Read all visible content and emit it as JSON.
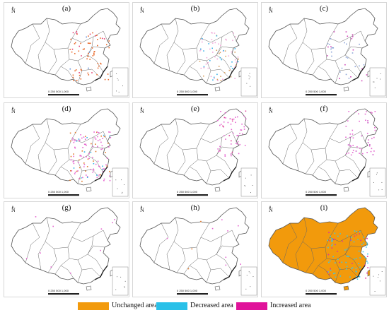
{
  "figure": {
    "panels": [
      {
        "label": "(a)",
        "fill": "none",
        "dots": [
          [
            "#e8692a",
            55
          ],
          [
            "#e53b6f",
            12
          ],
          [
            "#6a8fd6",
            4
          ]
        ],
        "region": "east"
      },
      {
        "label": "(b)",
        "fill": "none",
        "dots": [
          [
            "#d9a062",
            18
          ],
          [
            "#f0a8d8",
            40
          ],
          [
            "#3cb4e8",
            20
          ]
        ],
        "region": "east"
      },
      {
        "label": "(c)",
        "fill": "none",
        "dots": [
          [
            "#d048b8",
            16
          ],
          [
            "#8fa6d8",
            22
          ]
        ],
        "region": "east"
      },
      {
        "label": "(d)",
        "fill": "none",
        "dots": [
          [
            "#e07a2c",
            30
          ],
          [
            "#e566d0",
            80
          ],
          [
            "#3cb4e8",
            14
          ]
        ],
        "region": "east"
      },
      {
        "label": "(e)",
        "fill": "none",
        "dots": [
          [
            "#e566d0",
            45
          ],
          [
            "#e0409a",
            10
          ]
        ],
        "region": "northeast"
      },
      {
        "label": "(f)",
        "fill": "none",
        "dots": [
          [
            "#e566d0",
            40
          ],
          [
            "#c84fc0",
            10
          ]
        ],
        "region": "northeast"
      },
      {
        "label": "(g)",
        "fill": "none",
        "dots": [
          [
            "#e566d0",
            10
          ]
        ],
        "region": "sparse"
      },
      {
        "label": "(h)",
        "fill": "none",
        "dots": [
          [
            "#e566d0",
            8
          ],
          [
            "#e07a2c",
            3
          ]
        ],
        "region": "sparse"
      },
      {
        "label": "(i)",
        "fill": "#f29a0c",
        "dots": [
          [
            "#3cc6e8",
            70
          ],
          [
            "#e030a0",
            25
          ]
        ],
        "region": "east"
      }
    ],
    "scale_label": "0  250 500    1,000",
    "north_symbol": "N"
  },
  "legend": [
    {
      "label": "Unchanged area",
      "color": "#f29a0c"
    },
    {
      "label": "Decreased area",
      "color": "#29c0e8"
    },
    {
      "label": "Increased area",
      "color": "#e0139a"
    }
  ]
}
